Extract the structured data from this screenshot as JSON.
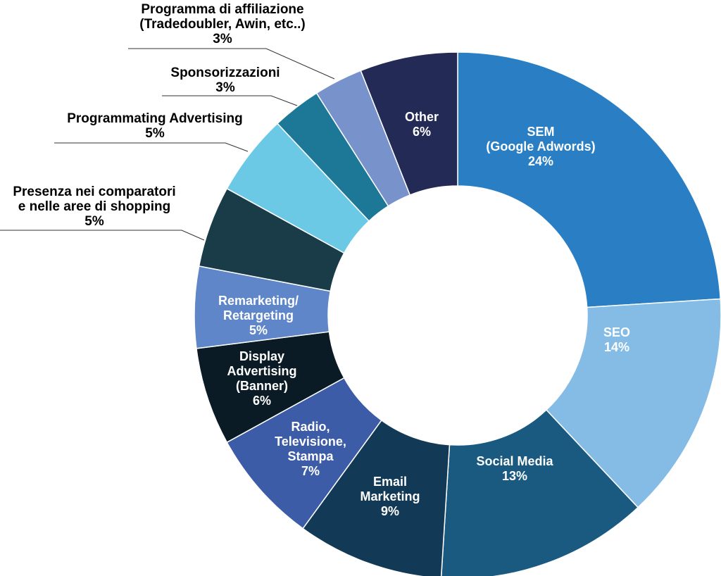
{
  "chart_data": {
    "type": "pie",
    "variant": "donut",
    "unit": "%",
    "title": "",
    "slices": [
      {
        "label_lines": [
          "SEM",
          "(Google Adwords)"
        ],
        "value": 24,
        "value_label": "24%",
        "color": "#2A7FC4",
        "text_color": "#ffffff"
      },
      {
        "label_lines": [
          "SEO"
        ],
        "value": 14,
        "value_label": "14%",
        "color": "#85BCE6",
        "text_color": "#ffffff"
      },
      {
        "label_lines": [
          "Social Media"
        ],
        "value": 13,
        "value_label": "13%",
        "color": "#1B5A80",
        "text_color": "#ffffff"
      },
      {
        "label_lines": [
          "Email",
          "Marketing"
        ],
        "value": 9,
        "value_label": "9%",
        "color": "#123A56",
        "text_color": "#ffffff"
      },
      {
        "label_lines": [
          "Radio,",
          "Televisione,",
          "Stampa"
        ],
        "value": 7,
        "value_label": "7%",
        "color": "#3D5CA8",
        "text_color": "#ffffff"
      },
      {
        "label_lines": [
          "Display",
          "Advertising",
          "(Banner)"
        ],
        "value": 6,
        "value_label": "6%",
        "color": "#0A1B26",
        "text_color": "#ffffff"
      },
      {
        "label_lines": [
          "Remarketing/",
          "Retargeting"
        ],
        "value": 5,
        "value_label": "5%",
        "color": "#5E86C8",
        "text_color": "#ffffff"
      },
      {
        "label_lines": [
          "Presenza nei comparatori",
          "e nelle aree di shopping"
        ],
        "value": 5,
        "value_label": "5%",
        "color": "#1A3B48",
        "text_color": "#000000"
      },
      {
        "label_lines": [
          "Programmating Advertising"
        ],
        "value": 5,
        "value_label": "5%",
        "color": "#6BC9E6",
        "text_color": "#000000"
      },
      {
        "label_lines": [
          "Sponsorizzazioni"
        ],
        "value": 3,
        "value_label": "3%",
        "color": "#1C7896",
        "text_color": "#000000"
      },
      {
        "label_lines": [
          "Programma di affiliazione",
          "(Tradedoubler, Awin, etc..)"
        ],
        "value": 3,
        "value_label": "3%",
        "color": "#7892CC",
        "text_color": "#000000"
      },
      {
        "label_lines": [
          "Other"
        ],
        "value": 6,
        "value_label": "6%",
        "color": "#232A55",
        "text_color": "#ffffff"
      }
    ]
  }
}
